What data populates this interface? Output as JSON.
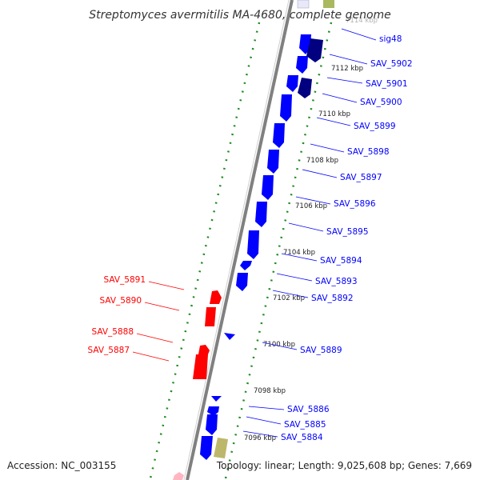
{
  "title": "Streptomyces avermitilis MA-4680, complete genome",
  "accession": "Accession: NC_003155",
  "topology": "Topology: linear; Length: 9,025,608 bp; Genes: 7,669",
  "colors": {
    "plus_gene": "#0000ff",
    "plus_gene_dark": "#000080",
    "minus_gene": "#ff0000",
    "other_feature": "#bdb76b",
    "rna_feature": "#ffb6c1",
    "backbone": "#808080",
    "tick": "#228b22"
  },
  "top_tick_label": "7114 kbp",
  "tick_labels": [
    "7112 kbp",
    "7110 kbp",
    "7108 kbp",
    "7106 kbp",
    "7104 kbp",
    "7102 kbp",
    "7100 kbp",
    "7098 kbp",
    "7096 kbp"
  ],
  "plus_labels": [
    "sig48",
    "SAV_5902",
    "SAV_5901",
    "SAV_5900",
    "SAV_5899",
    "SAV_5898",
    "SAV_5897",
    "SAV_5896",
    "SAV_5895",
    "SAV_5894",
    "SAV_5893",
    "SAV_5892",
    "SAV_5889",
    "SAV_5886",
    "SAV_5885",
    "SAV_5884"
  ],
  "minus_labels": [
    "SAV_5891",
    "SAV_5890",
    "SAV_5888",
    "SAV_5887"
  ]
}
